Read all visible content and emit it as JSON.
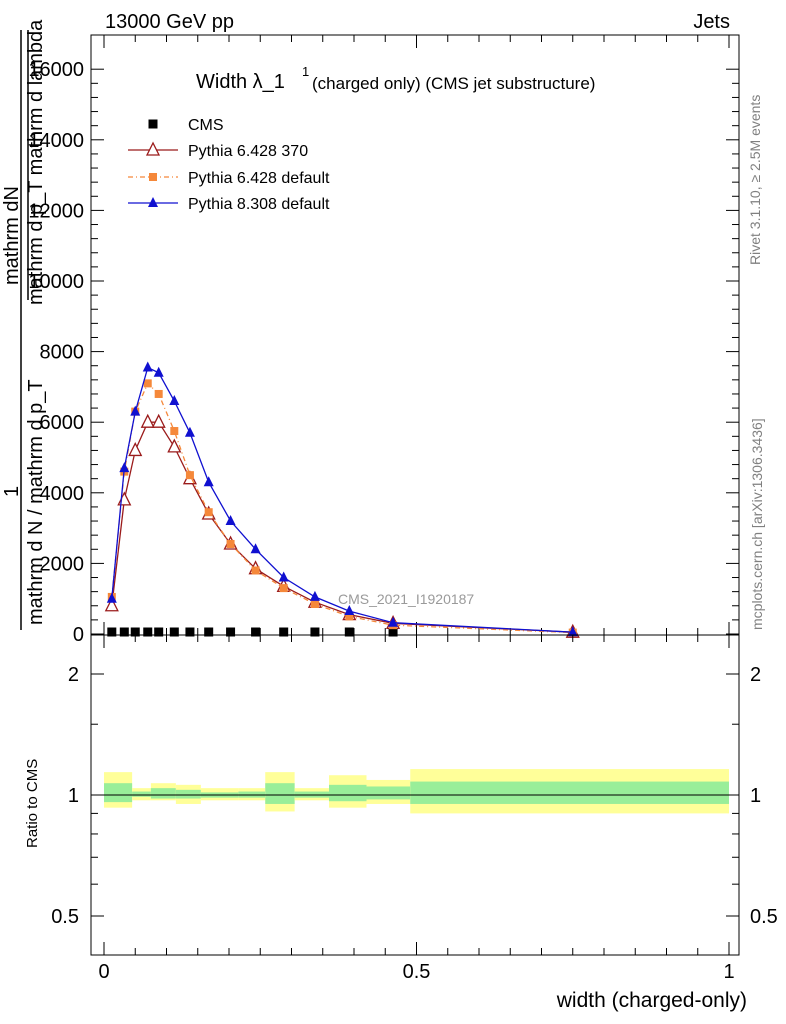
{
  "header": {
    "left": "13000 GeV pp",
    "right": "Jets"
  },
  "side_labels": {
    "rivet": "Rivet 3.1.10, ≥ 2.5M events",
    "mcplots": "mcplots.cern.ch [arXiv:1306.3436]"
  },
  "watermark": "CMS_2021_I1920187",
  "title": {
    "main": "Width λ_1",
    "sup": "1",
    "rest": "(charged only) (CMS jet substructure)"
  },
  "chart_data": [
    {
      "type": "line",
      "panel": "main",
      "ylabel_top": "mathrm dN",
      "ylabel_top_sub": "mathrm d p_T mathrm d lambda",
      "ylabel_one": "1",
      "ylabel_bottom": "mathrm d N / mathrm d p_T",
      "xlim": [
        0,
        1
      ],
      "ylim": [
        0,
        17000
      ],
      "y_ticks": [
        0,
        2000,
        4000,
        6000,
        8000,
        10000,
        12000,
        14000,
        16000
      ],
      "y_tick_labels": [
        "0",
        "2000",
        "4000",
        "6000",
        "8000",
        "10000",
        "12000",
        "14000",
        "16000"
      ],
      "legend": [
        "CMS",
        "Pythia 6.428 370",
        "Pythia 6.428 default",
        "Pythia 8.308 default"
      ],
      "series": [
        {
          "name": "CMS",
          "color": "#000000",
          "marker": "square",
          "x": [
            0.0125,
            0.0325,
            0.05,
            0.07,
            0.0875,
            0.1125,
            0.1375,
            0.1675,
            0.2025,
            0.2425,
            0.2875,
            0.3375,
            0.3925,
            0.4625
          ],
          "y": [
            0,
            0,
            0,
            0,
            0,
            0,
            0,
            0,
            0,
            0,
            0,
            0,
            0,
            0
          ]
        },
        {
          "name": "Pythia 6.428 370",
          "color": "#9b1b1b",
          "marker": "open-triangle",
          "x": [
            0.0125,
            0.0325,
            0.05,
            0.07,
            0.0875,
            0.1125,
            0.1375,
            0.1675,
            0.2025,
            0.2425,
            0.2875,
            0.3375,
            0.3925,
            0.4625,
            0.75
          ],
          "y": [
            800,
            3800,
            5200,
            6000,
            6000,
            5300,
            4400,
            3400,
            2550,
            1850,
            1350,
            900,
            550,
            300,
            50
          ]
        },
        {
          "name": "Pythia 6.428 default",
          "color": "#f5883a",
          "marker": "square",
          "x": [
            0.0125,
            0.0325,
            0.05,
            0.07,
            0.0875,
            0.1125,
            0.1375,
            0.1675,
            0.2025,
            0.2425,
            0.2875,
            0.3375,
            0.3925,
            0.4625,
            0.75
          ],
          "y": [
            1050,
            4600,
            6300,
            7100,
            6800,
            5750,
            4500,
            3450,
            2550,
            1800,
            1300,
            850,
            500,
            250,
            40
          ]
        },
        {
          "name": "Pythia 8.308 default",
          "color": "#1010d0",
          "marker": "triangle",
          "x": [
            0.0125,
            0.0325,
            0.05,
            0.07,
            0.0875,
            0.1125,
            0.1375,
            0.1675,
            0.2025,
            0.2425,
            0.2875,
            0.3375,
            0.3925,
            0.4625,
            0.75
          ],
          "y": [
            1000,
            4700,
            6300,
            7550,
            7400,
            6600,
            5700,
            4300,
            3200,
            2400,
            1600,
            1050,
            650,
            320,
            50
          ]
        }
      ]
    },
    {
      "type": "band",
      "panel": "ratio",
      "ylabel": "Ratio to CMS",
      "xlabel": "width (charged-only)",
      "xlim": [
        0,
        1
      ],
      "ylim": [
        0.4,
        2.3
      ],
      "x_ticks": [
        0,
        0.5,
        1
      ],
      "x_tick_labels": [
        "0",
        "0.5",
        "1"
      ],
      "y_ticks": [
        0.5,
        1,
        2
      ],
      "y_tick_labels": [
        "0.5",
        "1",
        "2"
      ],
      "bins": [
        [
          0.0,
          0.045,
          0.93,
          1.14,
          0.96,
          1.07
        ],
        [
          0.045,
          0.075,
          0.97,
          1.04,
          0.99,
          1.02
        ],
        [
          0.075,
          0.115,
          0.97,
          1.07,
          0.98,
          1.04
        ],
        [
          0.115,
          0.155,
          0.95,
          1.06,
          0.98,
          1.03
        ],
        [
          0.155,
          0.215,
          0.97,
          1.04,
          0.985,
          1.015
        ],
        [
          0.215,
          0.258,
          0.97,
          1.04,
          0.985,
          1.02
        ],
        [
          0.258,
          0.305,
          0.91,
          1.14,
          0.95,
          1.07
        ],
        [
          0.305,
          0.36,
          0.97,
          1.04,
          0.985,
          1.02
        ],
        [
          0.36,
          0.42,
          0.93,
          1.12,
          0.965,
          1.06
        ],
        [
          0.42,
          0.49,
          0.95,
          1.09,
          0.975,
          1.05
        ],
        [
          0.49,
          1.0,
          0.9,
          1.16,
          0.95,
          1.08
        ]
      ],
      "band_colors": {
        "outer": "#ffff99",
        "inner": "#99ee99"
      }
    }
  ]
}
